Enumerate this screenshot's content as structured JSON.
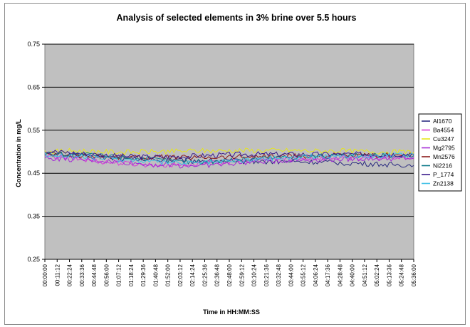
{
  "chart_data": {
    "type": "line",
    "title": "Analysis of selected elements in 3% brine over 5.5 hours",
    "xlabel": "Time in HH:MM:SS",
    "ylabel": "Concentration in mg/L",
    "ylim": [
      0.25,
      0.75
    ],
    "yticks": [
      "0.75",
      "0.65",
      "0.55",
      "0.45",
      "0.35",
      "0.25"
    ],
    "ytick_values": [
      0.75,
      0.65,
      0.55,
      0.45,
      0.35,
      0.25
    ],
    "xtick_labels": [
      "00:00:00",
      "00:11:12",
      "00:22:24",
      "00:33:36",
      "00:44:48",
      "00:56:00",
      "01:07:12",
      "01:18:24",
      "01:29:36",
      "01:40:48",
      "01:52:00",
      "02:03:12",
      "02:14:24",
      "02:25:36",
      "02:36:48",
      "02:48:00",
      "02:59:12",
      "03:10:24",
      "03:21:36",
      "03:32:48",
      "03:44:00",
      "03:55:12",
      "04:06:24",
      "04:17:36",
      "04:28:48",
      "04:40:00",
      "04:51:12",
      "05:02:24",
      "05:13:36",
      "05:24:48",
      "05:36:00"
    ],
    "grid": "horizontal",
    "plot_background": "#c0c0c0",
    "legend_position": "right",
    "series": [
      {
        "name": "Al1670",
        "color": "#2b2b80",
        "values": [
          0.497,
          0.495,
          0.493,
          0.49,
          0.488,
          0.486,
          0.485,
          0.483,
          0.482,
          0.481,
          0.481,
          0.48,
          0.48,
          0.48,
          0.479,
          0.479,
          0.478,
          0.478,
          0.477,
          0.477,
          0.477,
          0.476,
          0.476,
          0.475,
          0.474,
          0.473,
          0.472,
          0.471,
          0.47,
          0.469,
          0.468
        ]
      },
      {
        "name": "Ba4554",
        "color": "#d63ad6",
        "values": [
          0.49,
          0.488,
          0.485,
          0.482,
          0.479,
          0.476,
          0.474,
          0.472,
          0.47,
          0.469,
          0.469,
          0.47,
          0.471,
          0.473,
          0.475,
          0.477,
          0.479,
          0.481,
          0.482,
          0.483,
          0.484,
          0.485,
          0.485,
          0.485,
          0.486,
          0.486,
          0.486,
          0.486,
          0.487,
          0.487,
          0.487
        ]
      },
      {
        "name": "Cu3247",
        "color": "#e6e61a",
        "values": [
          0.5,
          0.501,
          0.502,
          0.502,
          0.501,
          0.5,
          0.499,
          0.499,
          0.5,
          0.5,
          0.501,
          0.501,
          0.502,
          0.502,
          0.502,
          0.503,
          0.503,
          0.503,
          0.503,
          0.503,
          0.503,
          0.503,
          0.502,
          0.502,
          0.502,
          0.501,
          0.501,
          0.5,
          0.5,
          0.499,
          0.499
        ]
      },
      {
        "name": "Mg2795",
        "color": "#a32ad6",
        "values": [
          0.485,
          0.484,
          0.482,
          0.481,
          0.48,
          0.478,
          0.476,
          0.474,
          0.472,
          0.47,
          0.469,
          0.468,
          0.468,
          0.469,
          0.47,
          0.472,
          0.474,
          0.476,
          0.478,
          0.479,
          0.48,
          0.481,
          0.482,
          0.482,
          0.483,
          0.483,
          0.484,
          0.484,
          0.484,
          0.485,
          0.485
        ]
      },
      {
        "name": "Mn2576",
        "color": "#8b1a1a",
        "values": [
          0.494,
          0.493,
          0.492,
          0.491,
          0.49,
          0.489,
          0.488,
          0.488,
          0.487,
          0.487,
          0.487,
          0.487,
          0.487,
          0.488,
          0.488,
          0.488,
          0.489,
          0.489,
          0.489,
          0.49,
          0.49,
          0.49,
          0.49,
          0.491,
          0.491,
          0.491,
          0.491,
          0.491,
          0.492,
          0.492,
          0.492
        ]
      },
      {
        "name": "Ni2216",
        "color": "#0f7a8a",
        "values": [
          0.496,
          0.495,
          0.494,
          0.493,
          0.492,
          0.49,
          0.488,
          0.486,
          0.484,
          0.482,
          0.48,
          0.478,
          0.477,
          0.477,
          0.478,
          0.48,
          0.482,
          0.484,
          0.486,
          0.487,
          0.488,
          0.489,
          0.489,
          0.49,
          0.49,
          0.49,
          0.491,
          0.491,
          0.491,
          0.491,
          0.491
        ]
      },
      {
        "name": "P_1774",
        "color": "#3a1a8a",
        "values": [
          0.502,
          0.5,
          0.498,
          0.496,
          0.494,
          0.492,
          0.49,
          0.489,
          0.488,
          0.488,
          0.488,
          0.489,
          0.49,
          0.491,
          0.492,
          0.493,
          0.494,
          0.494,
          0.494,
          0.494,
          0.494,
          0.494,
          0.494,
          0.494,
          0.494,
          0.494,
          0.494,
          0.494,
          0.494,
          0.494,
          0.494
        ]
      },
      {
        "name": "Zn2138",
        "color": "#3fc0e6",
        "values": [
          0.493,
          0.492,
          0.49,
          0.488,
          0.486,
          0.484,
          0.482,
          0.48,
          0.478,
          0.476,
          0.475,
          0.474,
          0.474,
          0.475,
          0.476,
          0.478,
          0.48,
          0.482,
          0.484,
          0.486,
          0.487,
          0.488,
          0.489,
          0.49,
          0.49,
          0.491,
          0.491,
          0.491,
          0.492,
          0.492,
          0.492
        ]
      }
    ]
  }
}
